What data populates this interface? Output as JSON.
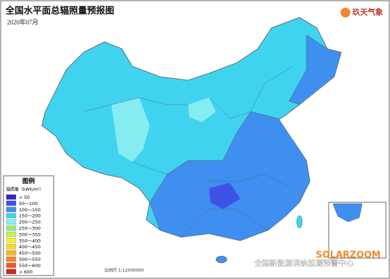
{
  "header": {
    "title": "全国水平面总辐照量预报图",
    "date": "2020年07月"
  },
  "logo": "玖天气象",
  "legend": {
    "title": "图例",
    "unit": "辐照量（kWh/m²）",
    "items": [
      {
        "label": "< 50",
        "color": "#3a22c8"
      },
      {
        "label": "50～100",
        "color": "#3f52e6"
      },
      {
        "label": "100～150",
        "color": "#3f8ff0"
      },
      {
        "label": "150～200",
        "color": "#3fd3f0"
      },
      {
        "label": "200～250",
        "color": "#86ecf2"
      },
      {
        "label": "250～300",
        "color": "#8ef07a"
      },
      {
        "label": "300～350",
        "color": "#c4f05a"
      },
      {
        "label": "350～400",
        "color": "#f0f03c"
      },
      {
        "label": "400～450",
        "color": "#f4dc2c"
      },
      {
        "label": "450～500",
        "color": "#f4b42c"
      },
      {
        "label": "500～550",
        "color": "#f08a2c"
      },
      {
        "label": "550～600",
        "color": "#ec5a2c"
      },
      {
        "label": "> 600",
        "color": "#d82020"
      }
    ]
  },
  "scale": "比例尺 1:12000000",
  "watermark": {
    "brand": "SOLARZOOM",
    "source": "全国新能源消纳监测预警中心"
  }
}
